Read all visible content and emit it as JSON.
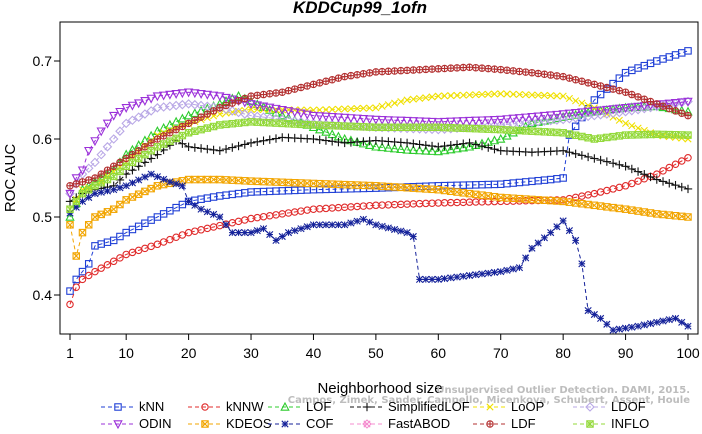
{
  "chart_data": {
    "type": "line",
    "title": "KDDCup99_1ofn",
    "xlabel": "Neighborhood size",
    "ylabel": "ROC AUC",
    "xlim": [
      1,
      100
    ],
    "ylim": [
      0.35,
      0.75
    ],
    "xticks": [
      1,
      10,
      20,
      30,
      40,
      50,
      60,
      70,
      80,
      90,
      100
    ],
    "yticks": [
      0.4,
      0.5,
      0.6,
      0.7
    ],
    "ytick_labels": [
      "0.4",
      "0.5",
      "0.6",
      "0.7"
    ],
    "legend_position": "bottom",
    "series": [
      {
        "name": "kNN",
        "color": "#1f3fd6",
        "marker": "square",
        "points": [
          [
            1,
            0.405
          ],
          [
            2,
            0.42
          ],
          [
            3,
            0.43
          ],
          [
            4,
            0.44
          ],
          [
            5,
            0.463
          ],
          [
            8,
            0.47
          ],
          [
            10,
            0.48
          ],
          [
            15,
            0.5
          ],
          [
            20,
            0.52
          ],
          [
            25,
            0.527
          ],
          [
            30,
            0.532
          ],
          [
            40,
            0.535
          ],
          [
            50,
            0.537
          ],
          [
            60,
            0.54
          ],
          [
            70,
            0.542
          ],
          [
            78,
            0.548
          ],
          [
            80,
            0.55
          ],
          [
            81,
            0.605
          ],
          [
            85,
            0.65
          ],
          [
            90,
            0.685
          ],
          [
            95,
            0.7
          ],
          [
            100,
            0.713
          ]
        ]
      },
      {
        "name": "kNNW",
        "color": "#e02b2b",
        "marker": "circle",
        "points": [
          [
            1,
            0.388
          ],
          [
            2,
            0.41
          ],
          [
            3,
            0.42
          ],
          [
            5,
            0.43
          ],
          [
            10,
            0.452
          ],
          [
            15,
            0.465
          ],
          [
            20,
            0.48
          ],
          [
            30,
            0.498
          ],
          [
            40,
            0.51
          ],
          [
            50,
            0.515
          ],
          [
            60,
            0.518
          ],
          [
            70,
            0.52
          ],
          [
            80,
            0.522
          ],
          [
            85,
            0.53
          ],
          [
            90,
            0.54
          ],
          [
            95,
            0.555
          ],
          [
            100,
            0.576
          ]
        ]
      },
      {
        "name": "LOF",
        "color": "#2ecc2e",
        "marker": "triangle-up",
        "points": [
          [
            1,
            0.5
          ],
          [
            3,
            0.535
          ],
          [
            5,
            0.545
          ],
          [
            8,
            0.56
          ],
          [
            10,
            0.58
          ],
          [
            15,
            0.61
          ],
          [
            20,
            0.63
          ],
          [
            25,
            0.645
          ],
          [
            28,
            0.655
          ],
          [
            30,
            0.648
          ],
          [
            35,
            0.63
          ],
          [
            40,
            0.615
          ],
          [
            45,
            0.6
          ],
          [
            50,
            0.59
          ],
          [
            55,
            0.586
          ],
          [
            60,
            0.584
          ],
          [
            65,
            0.59
          ],
          [
            70,
            0.6
          ],
          [
            75,
            0.62
          ],
          [
            80,
            0.628
          ],
          [
            85,
            0.635
          ],
          [
            90,
            0.64
          ],
          [
            95,
            0.642
          ],
          [
            100,
            0.635
          ]
        ]
      },
      {
        "name": "SimplifiedLOF",
        "color": "#111111",
        "marker": "plus",
        "points": [
          [
            1,
            0.52
          ],
          [
            3,
            0.53
          ],
          [
            5,
            0.535
          ],
          [
            8,
            0.54
          ],
          [
            10,
            0.555
          ],
          [
            15,
            0.58
          ],
          [
            18,
            0.598
          ],
          [
            20,
            0.59
          ],
          [
            25,
            0.585
          ],
          [
            30,
            0.595
          ],
          [
            35,
            0.602
          ],
          [
            40,
            0.6
          ],
          [
            45,
            0.595
          ],
          [
            50,
            0.598
          ],
          [
            55,
            0.595
          ],
          [
            60,
            0.59
          ],
          [
            65,
            0.595
          ],
          [
            70,
            0.585
          ],
          [
            75,
            0.583
          ],
          [
            80,
            0.585
          ],
          [
            85,
            0.575
          ],
          [
            90,
            0.565
          ],
          [
            95,
            0.548
          ],
          [
            100,
            0.536
          ]
        ]
      },
      {
        "name": "LoOP",
        "color": "#f0e000",
        "marker": "x",
        "points": [
          [
            1,
            0.51
          ],
          [
            3,
            0.535
          ],
          [
            5,
            0.54
          ],
          [
            10,
            0.57
          ],
          [
            15,
            0.605
          ],
          [
            20,
            0.62
          ],
          [
            25,
            0.632
          ],
          [
            30,
            0.638
          ],
          [
            40,
            0.637
          ],
          [
            50,
            0.64
          ],
          [
            55,
            0.65
          ],
          [
            60,
            0.655
          ],
          [
            70,
            0.658
          ],
          [
            80,
            0.655
          ],
          [
            85,
            0.64
          ],
          [
            90,
            0.62
          ],
          [
            95,
            0.605
          ],
          [
            100,
            0.6
          ]
        ]
      },
      {
        "name": "LDOF",
        "color": "#b9a8e6",
        "marker": "diamond",
        "points": [
          [
            1,
            0.53
          ],
          [
            3,
            0.555
          ],
          [
            5,
            0.57
          ],
          [
            8,
            0.6
          ],
          [
            10,
            0.62
          ],
          [
            15,
            0.64
          ],
          [
            20,
            0.645
          ],
          [
            25,
            0.64
          ],
          [
            30,
            0.63
          ],
          [
            40,
            0.62
          ],
          [
            50,
            0.615
          ],
          [
            60,
            0.612
          ],
          [
            70,
            0.618
          ],
          [
            80,
            0.625
          ],
          [
            90,
            0.635
          ],
          [
            100,
            0.648
          ]
        ]
      },
      {
        "name": "ODIN",
        "color": "#9b30d9",
        "marker": "triangle-down",
        "points": [
          [
            1,
            0.53
          ],
          [
            2,
            0.55
          ],
          [
            3,
            0.56
          ],
          [
            4,
            0.585
          ],
          [
            6,
            0.61
          ],
          [
            8,
            0.63
          ],
          [
            10,
            0.64
          ],
          [
            15,
            0.655
          ],
          [
            20,
            0.66
          ],
          [
            25,
            0.655
          ],
          [
            30,
            0.645
          ],
          [
            40,
            0.63
          ],
          [
            50,
            0.625
          ],
          [
            60,
            0.622
          ],
          [
            70,
            0.625
          ],
          [
            80,
            0.632
          ],
          [
            90,
            0.64
          ],
          [
            100,
            0.648
          ]
        ]
      },
      {
        "name": "KDEOS",
        "color": "#f2a500",
        "marker": "square-x",
        "points": [
          [
            1,
            0.49
          ],
          [
            2,
            0.45
          ],
          [
            3,
            0.48
          ],
          [
            5,
            0.5
          ],
          [
            8,
            0.51
          ],
          [
            10,
            0.522
          ],
          [
            15,
            0.54
          ],
          [
            20,
            0.548
          ],
          [
            25,
            0.548
          ],
          [
            30,
            0.546
          ],
          [
            40,
            0.543
          ],
          [
            50,
            0.54
          ],
          [
            60,
            0.535
          ],
          [
            70,
            0.525
          ],
          [
            80,
            0.52
          ],
          [
            85,
            0.515
          ],
          [
            90,
            0.51
          ],
          [
            95,
            0.504
          ],
          [
            100,
            0.5
          ]
        ]
      },
      {
        "name": "COF",
        "color": "#15229a",
        "marker": "asterisk",
        "points": [
          [
            1,
            0.505
          ],
          [
            3,
            0.52
          ],
          [
            5,
            0.53
          ],
          [
            8,
            0.535
          ],
          [
            10,
            0.54
          ],
          [
            14,
            0.555
          ],
          [
            17,
            0.545
          ],
          [
            19,
            0.54
          ],
          [
            20,
            0.52
          ],
          [
            22,
            0.51
          ],
          [
            25,
            0.5
          ],
          [
            27,
            0.48
          ],
          [
            30,
            0.48
          ],
          [
            32,
            0.485
          ],
          [
            34,
            0.47
          ],
          [
            36,
            0.48
          ],
          [
            40,
            0.49
          ],
          [
            45,
            0.49
          ],
          [
            48,
            0.497
          ],
          [
            50,
            0.49
          ],
          [
            55,
            0.48
          ],
          [
            56,
            0.475
          ],
          [
            57,
            0.42
          ],
          [
            60,
            0.42
          ],
          [
            65,
            0.425
          ],
          [
            70,
            0.43
          ],
          [
            73,
            0.435
          ],
          [
            75,
            0.46
          ],
          [
            78,
            0.48
          ],
          [
            80,
            0.495
          ],
          [
            82,
            0.47
          ],
          [
            83,
            0.44
          ],
          [
            84,
            0.38
          ],
          [
            86,
            0.37
          ],
          [
            88,
            0.355
          ],
          [
            92,
            0.36
          ],
          [
            95,
            0.365
          ],
          [
            98,
            0.37
          ],
          [
            100,
            0.36
          ]
        ]
      },
      {
        "name": "FastABOD",
        "color": "#f58ccf",
        "marker": "diamond-x",
        "points": []
      },
      {
        "name": "LDF",
        "color": "#b33030",
        "marker": "circle-plus",
        "points": [
          [
            1,
            0.54
          ],
          [
            3,
            0.545
          ],
          [
            5,
            0.55
          ],
          [
            10,
            0.575
          ],
          [
            15,
            0.6
          ],
          [
            20,
            0.62
          ],
          [
            25,
            0.64
          ],
          [
            30,
            0.655
          ],
          [
            35,
            0.66
          ],
          [
            40,
            0.67
          ],
          [
            45,
            0.68
          ],
          [
            50,
            0.686
          ],
          [
            55,
            0.688
          ],
          [
            60,
            0.69
          ],
          [
            65,
            0.692
          ],
          [
            70,
            0.689
          ],
          [
            75,
            0.685
          ],
          [
            80,
            0.68
          ],
          [
            85,
            0.67
          ],
          [
            90,
            0.66
          ],
          [
            95,
            0.645
          ],
          [
            100,
            0.63
          ]
        ]
      },
      {
        "name": "INFLO",
        "color": "#93d93a",
        "marker": "square-star",
        "points": [
          [
            1,
            0.51
          ],
          [
            3,
            0.53
          ],
          [
            5,
            0.54
          ],
          [
            8,
            0.552
          ],
          [
            10,
            0.565
          ],
          [
            15,
            0.59
          ],
          [
            20,
            0.608
          ],
          [
            25,
            0.618
          ],
          [
            30,
            0.622
          ],
          [
            40,
            0.618
          ],
          [
            50,
            0.615
          ],
          [
            60,
            0.615
          ],
          [
            70,
            0.612
          ],
          [
            75,
            0.61
          ],
          [
            80,
            0.608
          ],
          [
            85,
            0.6
          ],
          [
            90,
            0.605
          ],
          [
            95,
            0.606
          ],
          [
            100,
            0.605
          ]
        ]
      }
    ]
  },
  "legend_rows": [
    [
      "kNN",
      "kNNW",
      "LOF",
      "SimplifiedLOF",
      "LoOP",
      "LDOF"
    ],
    [
      "ODIN",
      "KDEOS",
      "COF",
      "FastABOD",
      "LDF",
      "INFLO"
    ]
  ],
  "watermark": {
    "line1": "Unsupervised Outlier Detection. DAMI, 2015.",
    "line2": "Campos, Zimek, Sander, Campello, Micenkova, Schubert, Assent, Houle"
  }
}
